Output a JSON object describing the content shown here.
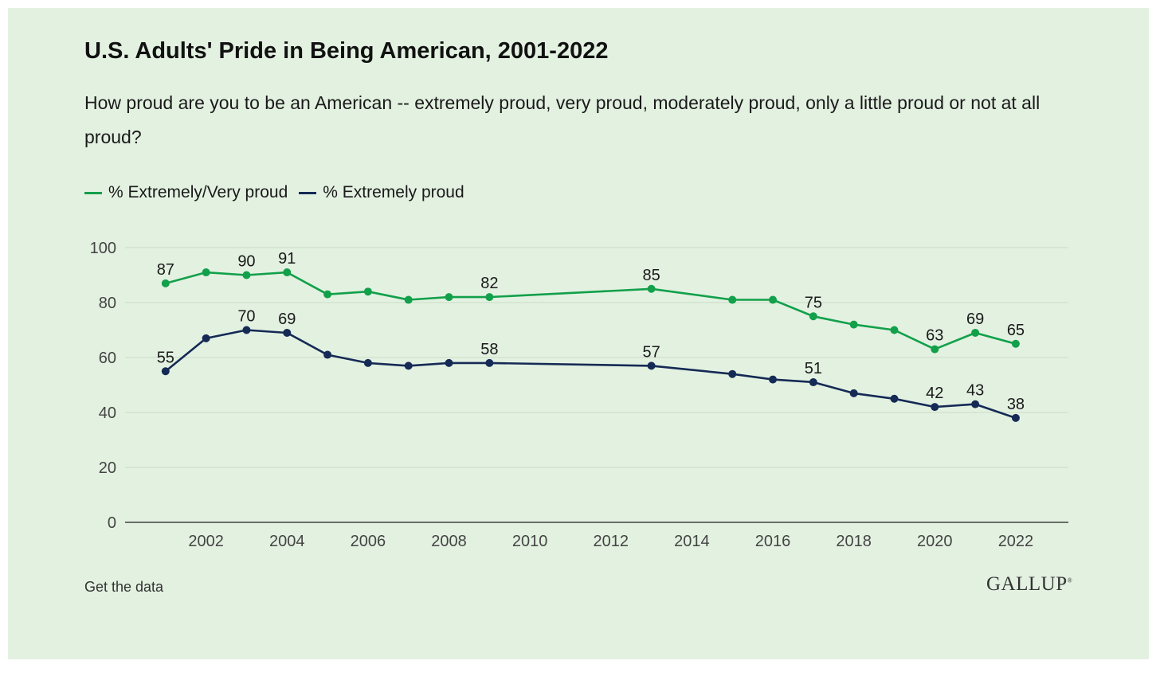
{
  "title": "U.S. Adults' Pride in Being American, 2001-2022",
  "subtitle": "How proud are you to be an American -- extremely proud, very proud, moderately proud, only a little proud or not at all proud?",
  "footer": {
    "data_link": "Get the data",
    "brand": "GALLUP"
  },
  "colors": {
    "background": "#e3f1e1",
    "series_green": "#12a04a",
    "series_navy": "#152a55",
    "grid": "#cbdcc8",
    "axis": "#222222"
  },
  "chart_data": {
    "type": "line",
    "title": "U.S. Adults' Pride in Being American, 2001-2022",
    "xlabel": "",
    "ylabel": "",
    "ylim": [
      0,
      100
    ],
    "y_ticks": [
      0,
      20,
      40,
      60,
      80,
      100
    ],
    "x_ticks": [
      2002,
      2004,
      2006,
      2008,
      2010,
      2012,
      2014,
      2016,
      2018,
      2020,
      2022
    ],
    "xlim": [
      2000,
      2023.3
    ],
    "grid": true,
    "legend_position": "top-left",
    "series": [
      {
        "name": "% Extremely/Very proud",
        "color": "#12a04a",
        "x": [
          2001,
          2002,
          2003,
          2004,
          2005,
          2006,
          2007,
          2008,
          2009,
          2013,
          2015,
          2016,
          2017,
          2018,
          2019,
          2020,
          2021,
          2022
        ],
        "values": [
          87,
          91,
          90,
          91,
          83,
          84,
          81,
          82,
          82,
          85,
          81,
          81,
          75,
          72,
          70,
          63,
          69,
          65
        ],
        "labeled_x": [
          2001,
          2003,
          2004,
          2009,
          2013,
          2017,
          2020,
          2021,
          2022
        ]
      },
      {
        "name": "% Extremely proud",
        "color": "#152a55",
        "x": [
          2001,
          2002,
          2003,
          2004,
          2005,
          2006,
          2007,
          2008,
          2009,
          2013,
          2015,
          2016,
          2017,
          2018,
          2019,
          2020,
          2021,
          2022
        ],
        "values": [
          55,
          67,
          70,
          69,
          61,
          58,
          57,
          58,
          58,
          57,
          54,
          52,
          51,
          47,
          45,
          42,
          43,
          38
        ],
        "labeled_x": [
          2001,
          2003,
          2004,
          2009,
          2013,
          2017,
          2020,
          2021,
          2022
        ]
      }
    ]
  }
}
